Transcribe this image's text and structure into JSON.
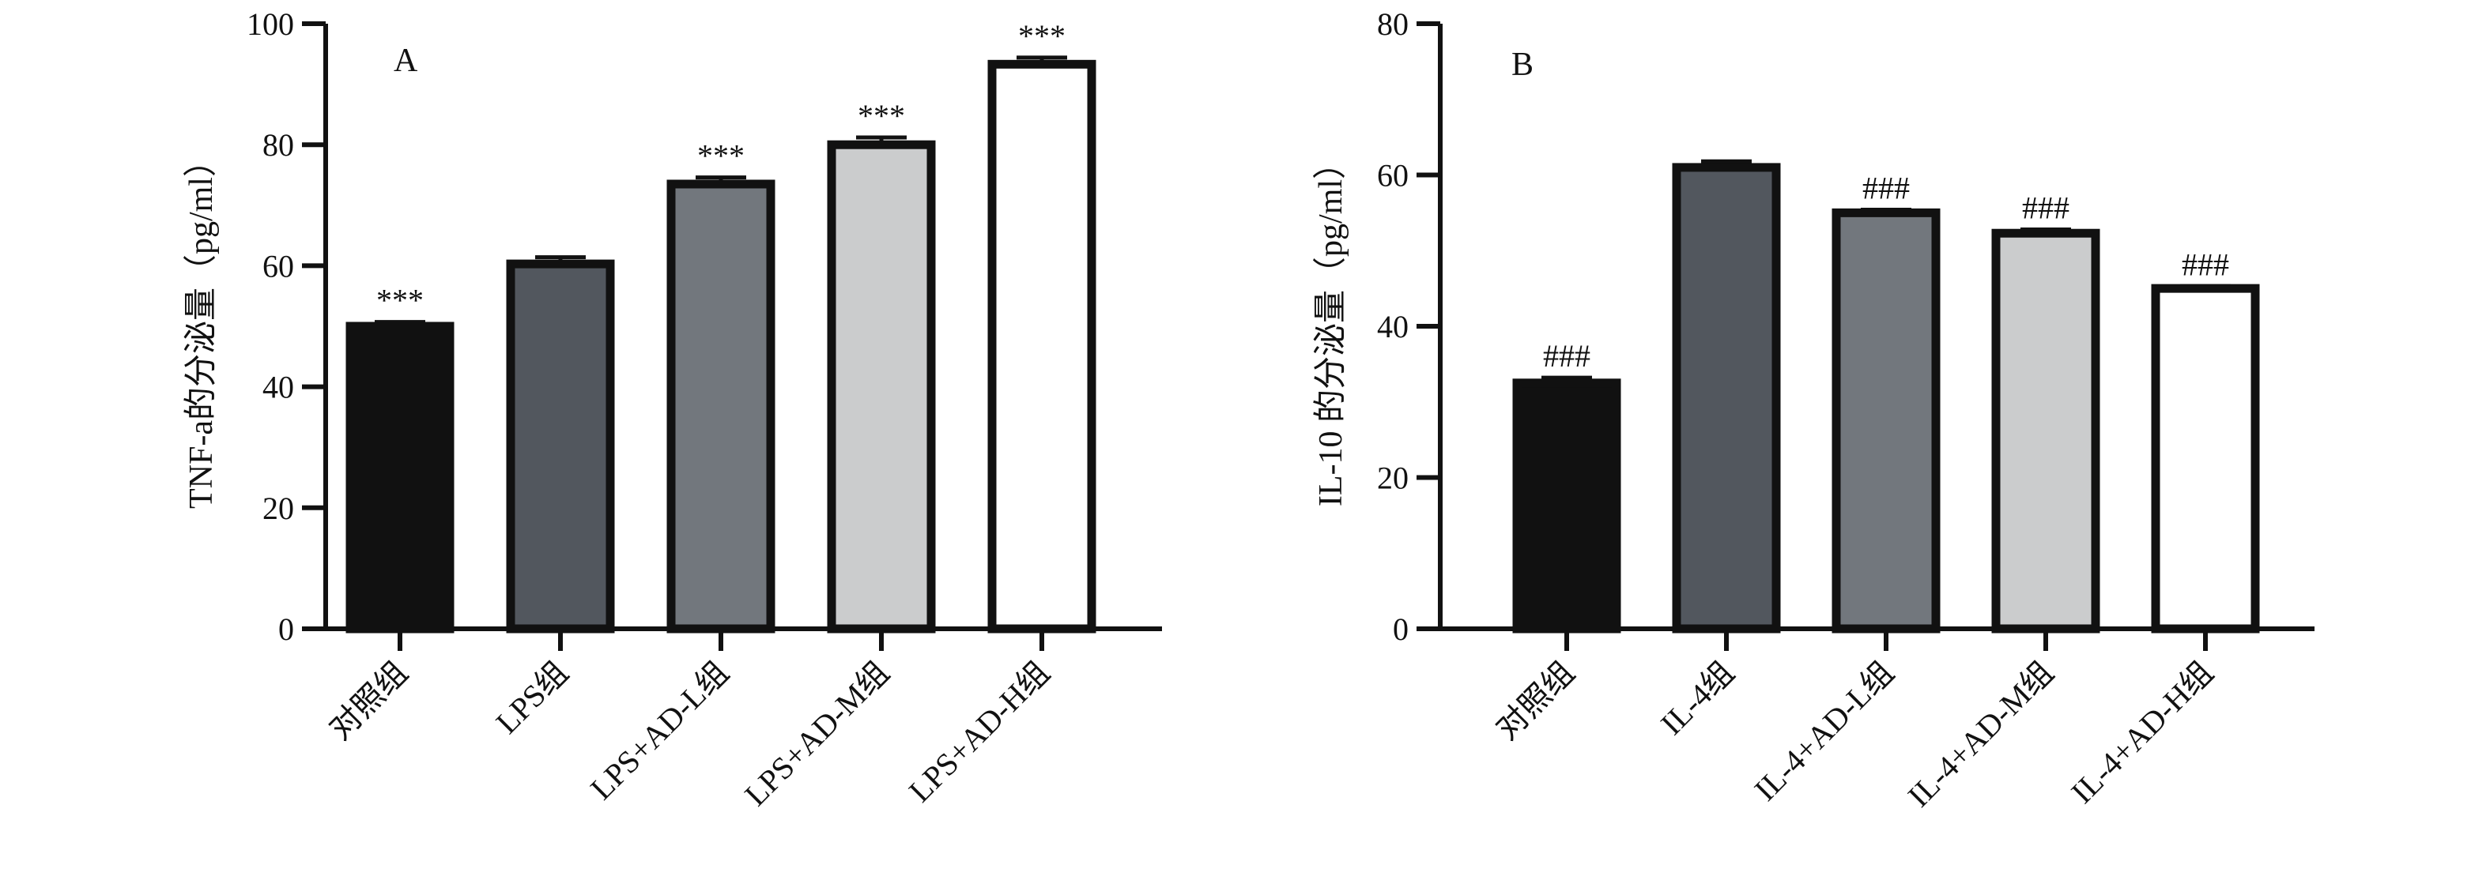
{
  "chart_data": [
    {
      "type": "bar",
      "panel_label": "A",
      "ylabel": "TNF-a的分泌量（pg/ml）",
      "xlabel": "",
      "ylim": [
        0,
        100
      ],
      "yticks": [
        0,
        20,
        40,
        60,
        80,
        100
      ],
      "categories": [
        "对照组",
        "LPS组",
        "LPS+AD-L组",
        "LPS+AD-M组",
        "LPS+AD-H组"
      ],
      "values": [
        50,
        60.3,
        73.5,
        80,
        93.3
      ],
      "errors": [
        0.7,
        1.1,
        1.1,
        1.2,
        1.1
      ],
      "significance": [
        "***",
        "",
        "***",
        "***",
        "***"
      ],
      "colors": [
        "#111111",
        "#52575e",
        "#72777d",
        "#cbcccd",
        "#ffffff"
      ]
    },
    {
      "type": "bar",
      "panel_label": "B",
      "ylabel": "IL-10 的分泌量（pg/ml）",
      "xlabel": "",
      "ylim": [
        0,
        80
      ],
      "yticks": [
        0,
        20,
        40,
        60,
        80
      ],
      "categories": [
        "对照组",
        "IL-4组",
        "IL-4+AD-L组",
        "IL-4+AD-M组",
        "IL-4+AD-H组"
      ],
      "values": [
        32.5,
        61,
        55,
        52.3,
        45
      ],
      "errors": [
        0.7,
        0.8,
        0.4,
        0.5,
        0.3
      ],
      "significance": [
        "###",
        "",
        "###",
        "###",
        "###"
      ],
      "colors": [
        "#111111",
        "#52575e",
        "#72777d",
        "#cbcccd",
        "#ffffff"
      ]
    }
  ]
}
